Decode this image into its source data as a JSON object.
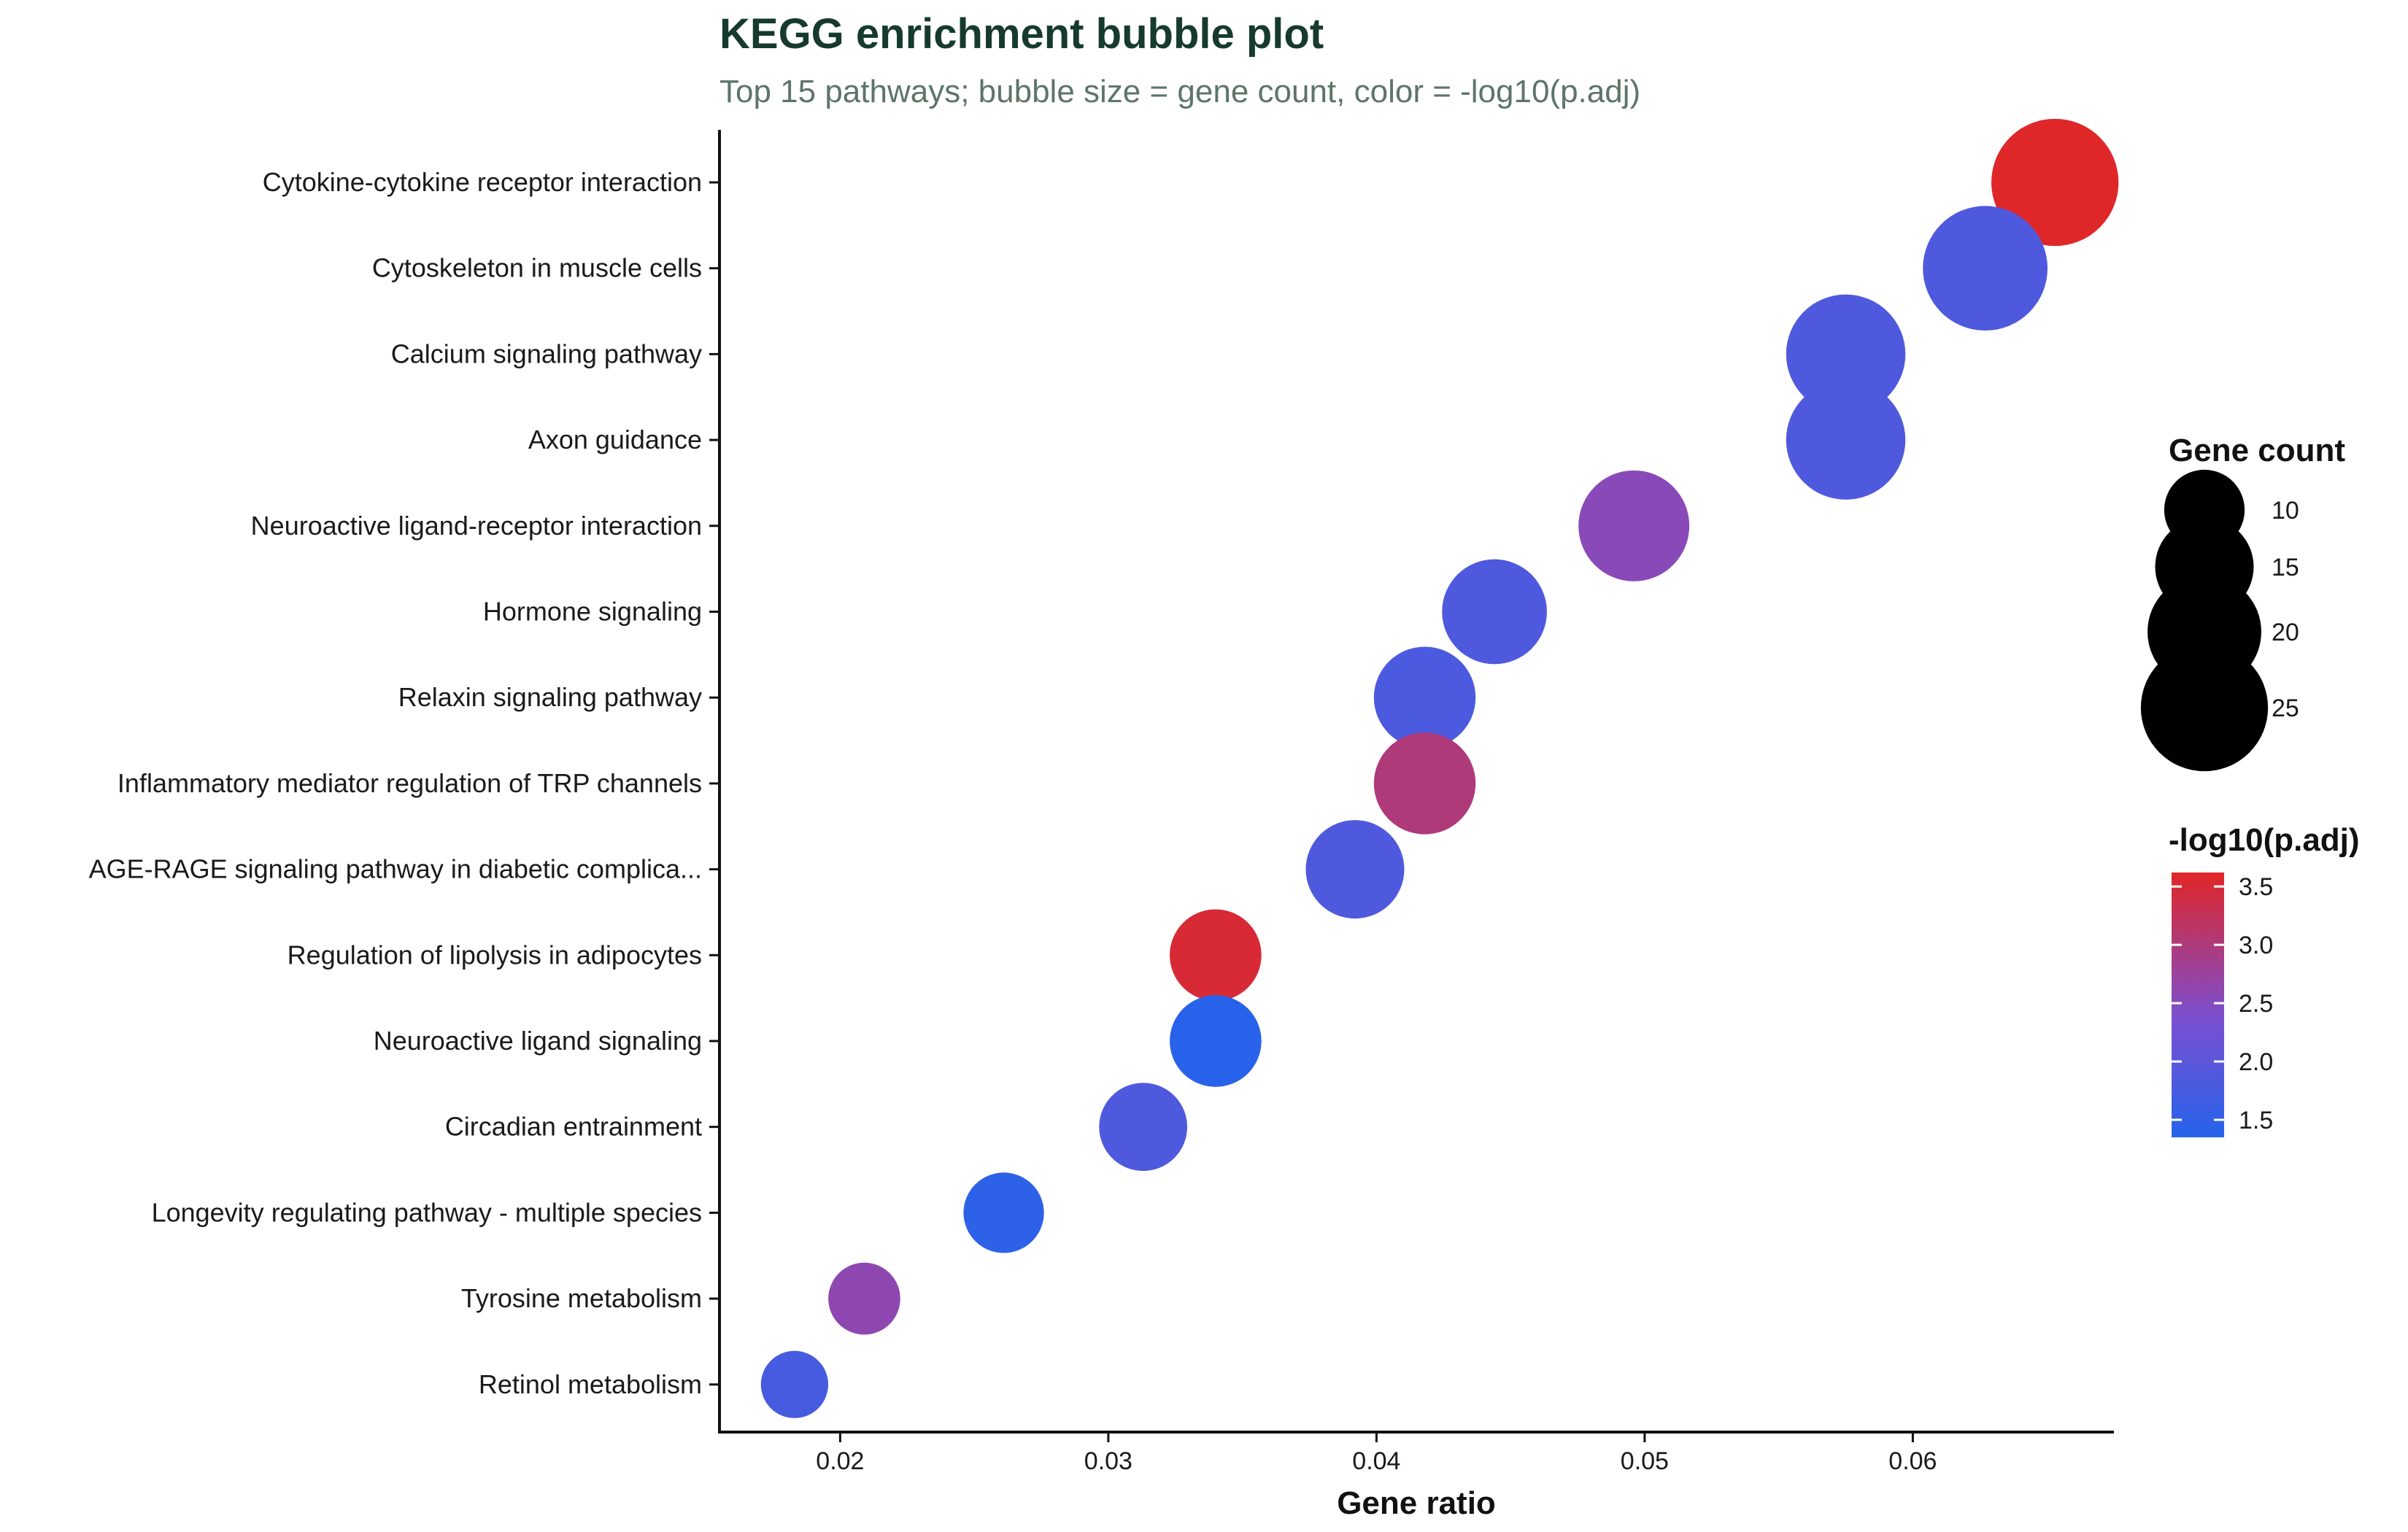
{
  "chart_data": {
    "type": "scatter",
    "title": "KEGG enrichment bubble plot",
    "subtitle": "Top 15 pathways; bubble size = gene count, color = -log10(p.adj)",
    "xlabel": "Gene ratio",
    "ylabel": "",
    "xlim": [
      0.0155,
      0.0675
    ],
    "xticks": [
      "0.02",
      "0.03",
      "0.04",
      "0.05",
      "0.06"
    ],
    "xtick_values": [
      0.02,
      0.03,
      0.04,
      0.05,
      0.06
    ],
    "grid": false,
    "legend_position": "right",
    "size_legend": {
      "title": "Gene count",
      "values": [
        10,
        15,
        20,
        25
      ],
      "labels": [
        "10",
        "15",
        "20",
        "25"
      ]
    },
    "color_legend": {
      "title": "-log10(p.adj)",
      "range": [
        1.35,
        3.62
      ],
      "ticks": [
        1.5,
        2.0,
        2.5,
        3.0,
        3.5
      ],
      "labels": [
        "1.5",
        "2.0",
        "2.5",
        "3.0",
        "3.5"
      ],
      "low_color": "#2563eb",
      "mid_color": "#7b4fd0",
      "high_color": "#e12626"
    },
    "pathways": [
      "Cytokine-cytokine receptor interaction",
      "Cytoskeleton in muscle cells",
      "Calcium signaling pathway",
      "Axon guidance",
      "Neuroactive ligand-receptor interaction",
      "Hormone signaling",
      "Relaxin signaling pathway",
      "Inflammatory mediator regulation of TRP channels",
      "AGE-RAGE signaling pathway in diabetic complica...",
      "Regulation of lipolysis in adipocytes",
      "Neuroactive ligand signaling",
      "Circadian entrainment",
      "Longevity regulating pathway - multiple species",
      "Tyrosine metabolism",
      "Retinol metabolism"
    ],
    "points": [
      {
        "pathway": "Cytokine-cytokine receptor interaction",
        "gene_ratio": 0.0653,
        "count": 25,
        "neg_log10_padj": 3.6
      },
      {
        "pathway": "Cytoskeleton in muscle cells",
        "gene_ratio": 0.0627,
        "count": 24,
        "neg_log10_padj": 1.85
      },
      {
        "pathway": "Calcium signaling pathway",
        "gene_ratio": 0.0575,
        "count": 22,
        "neg_log10_padj": 1.85
      },
      {
        "pathway": "Axon guidance",
        "gene_ratio": 0.0575,
        "count": 22,
        "neg_log10_padj": 1.85
      },
      {
        "pathway": "Neuroactive ligand-receptor interaction",
        "gene_ratio": 0.0496,
        "count": 19,
        "neg_log10_padj": 2.55
      },
      {
        "pathway": "Hormone signaling",
        "gene_ratio": 0.0444,
        "count": 17,
        "neg_log10_padj": 1.85
      },
      {
        "pathway": "Relaxin signaling pathway",
        "gene_ratio": 0.0418,
        "count": 16,
        "neg_log10_padj": 1.8
      },
      {
        "pathway": "Inflammatory mediator regulation of TRP channels",
        "gene_ratio": 0.0418,
        "count": 16,
        "neg_log10_padj": 3.0
      },
      {
        "pathway": "AGE-RAGE signaling pathway in diabetic complica...",
        "gene_ratio": 0.0392,
        "count": 15,
        "neg_log10_padj": 1.85
      },
      {
        "pathway": "Regulation of lipolysis in adipocytes",
        "gene_ratio": 0.034,
        "count": 13,
        "neg_log10_padj": 3.5
      },
      {
        "pathway": "Neuroactive ligand signaling",
        "gene_ratio": 0.034,
        "count": 13,
        "neg_log10_padj": 1.4
      },
      {
        "pathway": "Circadian entrainment",
        "gene_ratio": 0.0313,
        "count": 12,
        "neg_log10_padj": 1.85
      },
      {
        "pathway": "Longevity regulating pathway - multiple species",
        "gene_ratio": 0.0261,
        "count": 10,
        "neg_log10_padj": 1.45
      },
      {
        "pathway": "Tyrosine metabolism",
        "gene_ratio": 0.0209,
        "count": 8,
        "neg_log10_padj": 2.6
      },
      {
        "pathway": "Retinol metabolism",
        "gene_ratio": 0.0183,
        "count": 7,
        "neg_log10_padj": 1.75
      }
    ]
  }
}
